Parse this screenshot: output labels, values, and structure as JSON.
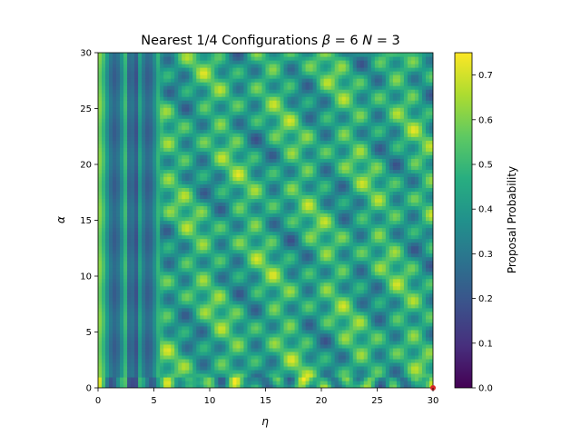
{
  "chart_data": {
    "type": "heatmap",
    "title_prefix": "Nearest 1/4 Configurations ",
    "title_beta": "β",
    "title_mid": " =  6 ",
    "title_N": "N",
    "title_suffix": " = 3",
    "xlabel": "η",
    "ylabel": "α",
    "xlim": [
      0,
      30
    ],
    "ylim": [
      0,
      30
    ],
    "x_ticks": [
      0,
      5,
      10,
      15,
      20,
      25,
      30
    ],
    "y_ticks": [
      0,
      5,
      10,
      15,
      20,
      25,
      30
    ],
    "colorbar": {
      "label": "Proposal Probability",
      "range": [
        0.0,
        0.75
      ],
      "ticks": [
        "0.0",
        "0.1",
        "0.2",
        "0.3",
        "0.4",
        "0.5",
        "0.6",
        "0.7"
      ],
      "colormap": "viridis"
    },
    "marker": {
      "x": 30,
      "y": 0,
      "color": "#d62728"
    },
    "grid": false
  }
}
